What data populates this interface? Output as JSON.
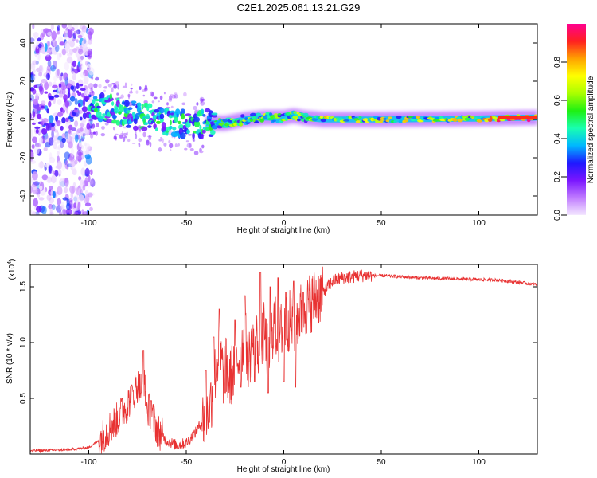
{
  "title": "C2E1.2025.061.13.21.G29",
  "chart_data": [
    {
      "type": "heatmap",
      "xlabel": "Height of straight line (km)",
      "ylabel": "Frequency (Hz)",
      "xlim": [
        -130,
        130
      ],
      "ylim": [
        -50,
        50
      ],
      "xticks": [
        -100,
        -50,
        0,
        50,
        100
      ],
      "yticks": [
        -40,
        -20,
        0,
        20,
        40
      ],
      "ridge": [
        {
          "x": -130,
          "y": 5
        },
        {
          "x": -110,
          "y": 7
        },
        {
          "x": -100,
          "y": 7
        },
        {
          "x": -90,
          "y": 6
        },
        {
          "x": -80,
          "y": 3
        },
        {
          "x": -70,
          "y": 1
        },
        {
          "x": -60,
          "y": -1
        },
        {
          "x": -50,
          "y": -2
        },
        {
          "x": -40,
          "y": -2
        },
        {
          "x": -30,
          "y": -2
        },
        {
          "x": -20,
          "y": 0
        },
        {
          "x": -10,
          "y": 1
        },
        {
          "x": 0,
          "y": 1
        },
        {
          "x": 5,
          "y": 2
        },
        {
          "x": 10,
          "y": 1
        },
        {
          "x": 20,
          "y": 0
        },
        {
          "x": 50,
          "y": 0
        },
        {
          "x": 100,
          "y": 0.5
        },
        {
          "x": 130,
          "y": 1
        }
      ],
      "colorbar": {
        "label": "Normalized spectral amplitude",
        "range": [
          0,
          1
        ],
        "ticks": [
          0.0,
          0.2,
          0.4,
          0.6,
          0.8
        ],
        "tick_labels": [
          "0.0",
          "0.2",
          "0.4",
          "0.6",
          "0.8"
        ],
        "colors": [
          "#f4e8ff",
          "#c07bff",
          "#7a16ff",
          "#1e18ff",
          "#00b8ff",
          "#19ffb0",
          "#1ef012",
          "#aaff00",
          "#ffff00",
          "#ffa200",
          "#ff2020",
          "#ff0090"
        ]
      }
    },
    {
      "type": "line",
      "xlabel": "Height of straight line (km)",
      "ylabel": "SNR (10 * v/v)",
      "scale_label": "(x10",
      "scale_exp": "4",
      "xlim": [
        -130,
        130
      ],
      "ylim": [
        0,
        1.7
      ],
      "xticks": [
        -100,
        -50,
        0,
        50,
        100
      ],
      "yticks": [
        0.5,
        1.0,
        1.5
      ],
      "ytick_labels": [
        "0.5",
        "1.0",
        "1.5"
      ],
      "line_color": "#e83232",
      "series": [
        {
          "x": [
            -130,
            -110,
            -100,
            -95,
            -90,
            -85,
            -80,
            -77,
            -75,
            -73,
            -72,
            -70,
            -68,
            -65,
            -60,
            -55,
            -50,
            -45,
            -40,
            -37,
            -35,
            -33,
            -31,
            -30,
            -28,
            -25,
            -22,
            -20,
            -18,
            -15,
            -12,
            -10,
            -8,
            -5,
            -3,
            0,
            3,
            5,
            7,
            10,
            15,
            20,
            25,
            30,
            40,
            50,
            70,
            90,
            110,
            130
          ],
          "y": [
            0.03,
            0.04,
            0.06,
            0.12,
            0.22,
            0.32,
            0.45,
            0.55,
            0.62,
            0.58,
            0.7,
            0.4,
            0.38,
            0.22,
            0.12,
            0.08,
            0.1,
            0.2,
            0.35,
            0.5,
            0.75,
            0.95,
            0.7,
            0.8,
            0.65,
            0.8,
            0.9,
            1.05,
            0.85,
            1.05,
            0.95,
            1.1,
            0.85,
            1.2,
            1.05,
            1.15,
            1.2,
            1.15,
            1.22,
            1.3,
            1.38,
            1.45,
            1.55,
            1.58,
            1.6,
            1.6,
            1.58,
            1.57,
            1.56,
            1.52
          ]
        }
      ],
      "peaks": [
        {
          "x": -83,
          "y": 0.5
        },
        {
          "x": -78,
          "y": 0.62
        },
        {
          "x": -72,
          "y": 0.93
        },
        {
          "x": -68,
          "y": 0.48
        },
        {
          "x": -40,
          "y": 0.75
        },
        {
          "x": -36,
          "y": 1.05
        },
        {
          "x": -33,
          "y": 1.3
        },
        {
          "x": -25,
          "y": 1.2
        },
        {
          "x": -20,
          "y": 1.42
        },
        {
          "x": -12,
          "y": 1.63
        },
        {
          "x": -7,
          "y": 1.5
        },
        {
          "x": -3,
          "y": 1.58
        },
        {
          "x": 1,
          "y": 1.45
        },
        {
          "x": 5,
          "y": 1.55
        },
        {
          "x": 10,
          "y": 1.45
        }
      ],
      "dips": [
        {
          "x": -30,
          "y": 0.55
        },
        {
          "x": -22,
          "y": 0.6
        },
        {
          "x": -15,
          "y": 0.65
        },
        {
          "x": -8,
          "y": 0.55
        },
        {
          "x": 0,
          "y": 0.65
        },
        {
          "x": 6,
          "y": 0.6
        }
      ]
    }
  ]
}
